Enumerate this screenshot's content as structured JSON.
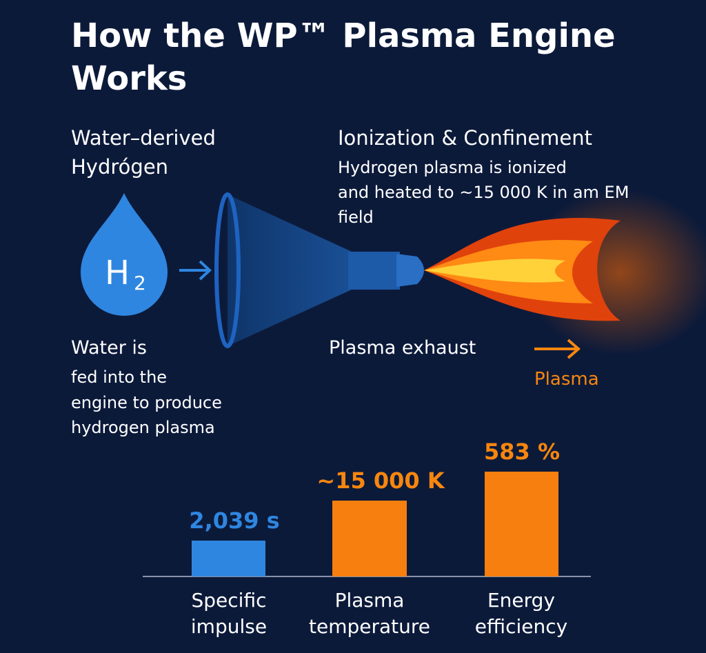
{
  "header": {
    "title_lines": [
      "How the WP™ Plasma Engine",
      "Works"
    ]
  },
  "input": {
    "heading": [
      "Water–derived",
      "Hydrógen"
    ],
    "symbol": "H",
    "subscript": "2",
    "caption_lead": "Water is",
    "caption": [
      "fed into the",
      "engine to produce",
      "hydrogen plasma"
    ]
  },
  "ionization": {
    "heading": "Ionization & Confinement",
    "body": [
      "Hydrogen plasma is ionized",
      "and heated to  ~15 000 K in am EM",
      "field"
    ]
  },
  "exhaust": {
    "label": "Plasma exhaust",
    "arrow_label": "Plasma"
  },
  "metrics": [
    {
      "value": "2,039 s",
      "label": [
        "Specific",
        "impulse"
      ]
    },
    {
      "value": "~15 000 K",
      "label": [
        "Plasma",
        "temperature"
      ]
    },
    {
      "value": "583 %",
      "label": [
        "Energy",
        "efficiency"
      ]
    }
  ]
}
